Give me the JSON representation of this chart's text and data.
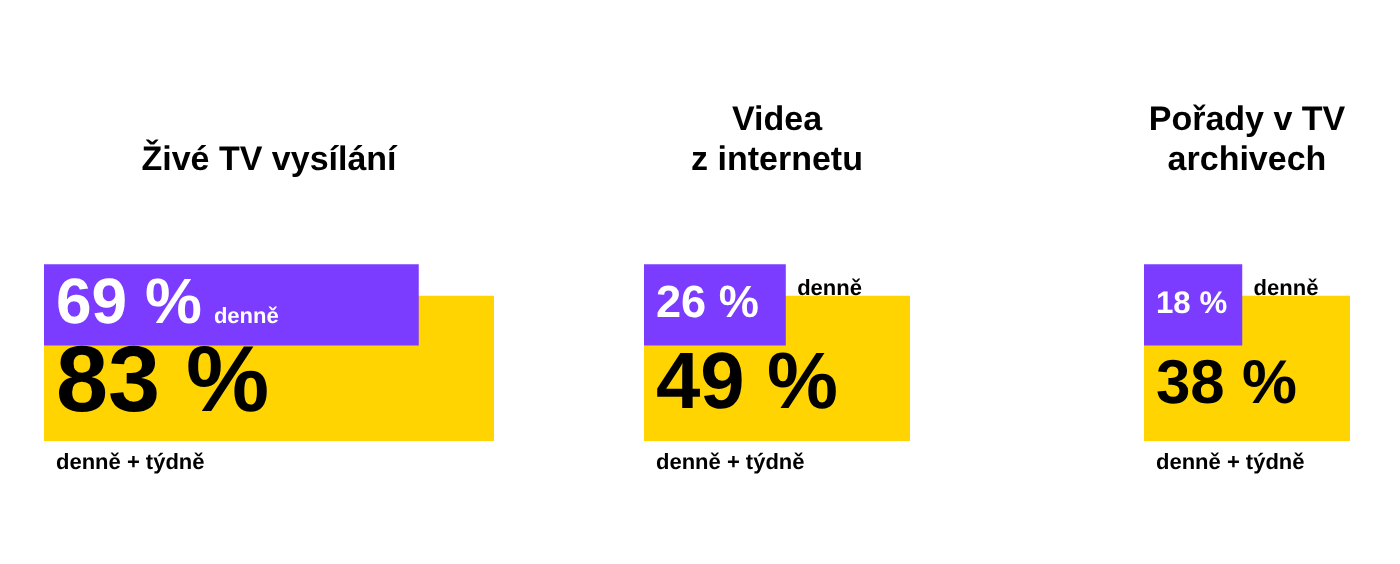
{
  "chart_data": [
    {
      "type": "bar",
      "orientation": "horizontal",
      "title": "Živé TV vysílání",
      "categories": [
        null
      ],
      "xlim": [
        0,
        83
      ],
      "tick_labels": false,
      "legend": false,
      "series": [
        {
          "name": "denně + týdně",
          "color": "#ffd400",
          "values": [
            83
          ],
          "value_labels": [
            "83 %"
          ]
        },
        {
          "name": "denně",
          "color": "#7b3cff",
          "values": [
            69
          ],
          "value_labels": [
            "69 %"
          ]
        }
      ]
    },
    {
      "type": "bar",
      "orientation": "horizontal",
      "title": "Videa\nz internetu",
      "categories": [
        null
      ],
      "xlim": [
        0,
        49
      ],
      "tick_labels": false,
      "legend": false,
      "series": [
        {
          "name": "denně + týdně",
          "color": "#ffd400",
          "values": [
            49
          ],
          "value_labels": [
            "49 %"
          ]
        },
        {
          "name": "denně",
          "color": "#7b3cff",
          "values": [
            26
          ],
          "value_labels": [
            "26 %"
          ]
        }
      ]
    },
    {
      "type": "bar",
      "orientation": "horizontal",
      "title": "Pořady v TV\narchivech",
      "categories": [
        null
      ],
      "xlim": [
        0,
        38
      ],
      "tick_labels": false,
      "legend": false,
      "series": [
        {
          "name": "denně + týdně",
          "color": "#ffd400",
          "values": [
            38
          ],
          "value_labels": [
            "38 %"
          ]
        },
        {
          "name": "denně",
          "color": "#7b3cff",
          "values": [
            18
          ],
          "value_labels": [
            "18 %"
          ]
        }
      ]
    }
  ]
}
